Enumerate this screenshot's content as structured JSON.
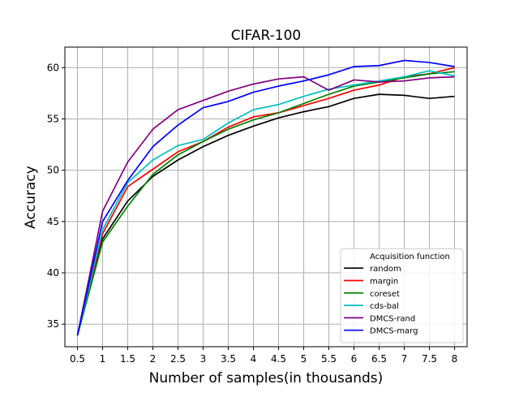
{
  "chart_data": {
    "type": "line",
    "title": "CIFAR-100",
    "xlabel": "Number of samples(in thousands)",
    "ylabel": "Accuracy",
    "x": [
      0.5,
      1,
      1.5,
      2,
      2.5,
      3,
      3.5,
      4,
      4.5,
      5,
      5.5,
      6,
      6.5,
      7,
      7.5,
      8
    ],
    "x_tick_labels": [
      "0.5",
      "1",
      "1.5",
      "2",
      "2.5",
      "3",
      "3.5",
      "4",
      "4.5",
      "5",
      "5.5",
      "6",
      "6.5",
      "7",
      "7.5",
      "8"
    ],
    "y_ticks": [
      35,
      40,
      45,
      50,
      55,
      60
    ],
    "y_tick_labels": [
      "35",
      "40",
      "45",
      "50",
      "55",
      "60"
    ],
    "xlim": [
      0.25,
      8.25
    ],
    "ylim": [
      32.8,
      62.0
    ],
    "grid": true,
    "legend": {
      "title": "Acquisition function",
      "position": "lower-right"
    },
    "series": [
      {
        "name": "random",
        "color": "#000000",
        "values": [
          33.9,
          43.3,
          47.0,
          49.4,
          51.0,
          52.3,
          53.4,
          54.3,
          55.1,
          55.7,
          56.2,
          57.0,
          57.4,
          57.3,
          57.0,
          57.2
        ]
      },
      {
        "name": "margin",
        "color": "#ff0000",
        "values": [
          33.9,
          43.8,
          48.4,
          50.1,
          51.8,
          52.8,
          54.2,
          55.2,
          55.6,
          56.3,
          57.0,
          57.8,
          58.3,
          59.1,
          59.4,
          60.0
        ]
      },
      {
        "name": "coreset",
        "color": "#008000",
        "values": [
          33.9,
          43.0,
          46.5,
          49.6,
          51.5,
          52.8,
          54.0,
          54.9,
          55.6,
          56.5,
          57.4,
          58.2,
          58.6,
          59.0,
          59.4,
          59.6
        ]
      },
      {
        "name": "cds-bal",
        "color": "#00bfbf",
        "values": [
          33.9,
          44.2,
          48.8,
          51.0,
          52.4,
          53.0,
          54.6,
          55.9,
          56.4,
          57.2,
          57.9,
          58.3,
          58.7,
          59.1,
          59.7,
          59.2
        ]
      },
      {
        "name": "DMCS-rand",
        "color": "#800080",
        "values": [
          33.9,
          46.0,
          50.8,
          54.0,
          55.9,
          56.8,
          57.7,
          58.4,
          58.9,
          59.1,
          57.8,
          58.8,
          58.6,
          58.7,
          59.0,
          59.1
        ]
      },
      {
        "name": "DMCS-marg",
        "color": "#0000ff",
        "values": [
          33.9,
          45.0,
          49.0,
          52.3,
          54.4,
          56.1,
          56.7,
          57.6,
          58.2,
          58.7,
          59.3,
          60.1,
          60.2,
          60.7,
          60.5,
          60.1
        ]
      }
    ]
  }
}
